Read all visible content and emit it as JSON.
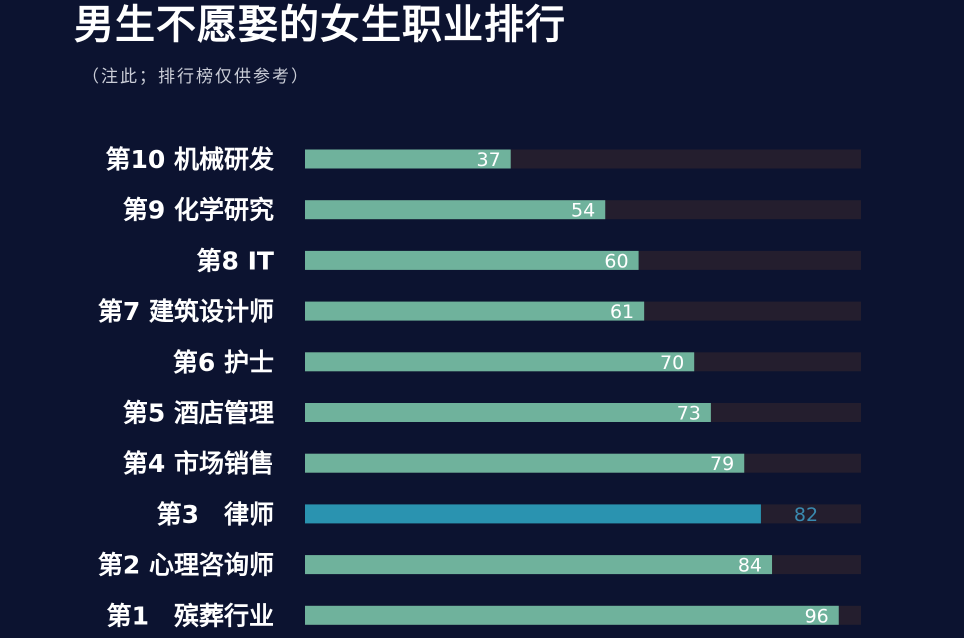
{
  "title": "男生不愿娶的女生职业排行",
  "subtitle": "（注此；排行榜仅供参考）",
  "colors": {
    "background": "#0c1330",
    "bar": "#6fb29c",
    "highlight_bar": "#2a93b0",
    "highlight_value": "#3a8ab0",
    "track": "#241e2e",
    "value_text": "#ffffff"
  },
  "chart_data": {
    "type": "bar",
    "orientation": "horizontal",
    "title": "男生不愿娶的女生职业排行",
    "subtitle": "（注此；排行榜仅供参考）",
    "xlim": [
      0,
      100
    ],
    "grid": false,
    "highlight_index": 7,
    "categories": [
      "第10 机械研发",
      "第9 化学研究",
      "第8 IT",
      "第7 建筑设计师",
      "第6 护士",
      "第5 酒店管理",
      "第4 市场销售",
      "第3　律师",
      "第2 心理咨询师",
      "第1　殡葬行业"
    ],
    "values": [
      37,
      54,
      60,
      61,
      70,
      73,
      79,
      82,
      84,
      96
    ]
  }
}
